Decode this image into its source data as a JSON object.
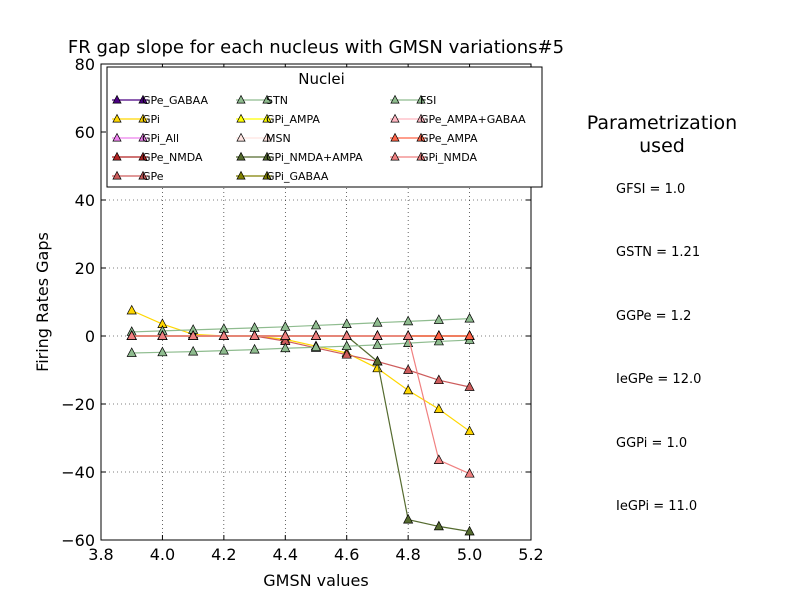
{
  "chart_data": {
    "type": "line",
    "title": "FR gap slope for each nucleus with GMSN variations#5",
    "xlabel": "GMSN values",
    "ylabel": "Firing Rates Gaps",
    "xlim": [
      3.8,
      5.2
    ],
    "ylim": [
      -60,
      80
    ],
    "xticks": [
      3.8,
      4.0,
      4.2,
      4.4,
      4.6,
      4.8,
      5.0,
      5.2
    ],
    "yticks": [
      -60,
      -40,
      -20,
      0,
      20,
      40,
      60,
      80
    ],
    "xtick_labels": [
      "3.8",
      "4.0",
      "4.2",
      "4.4",
      "4.6",
      "4.8",
      "5.0",
      "5.2"
    ],
    "ytick_labels": [
      "−60",
      "−40",
      "−20",
      "0",
      "20",
      "40",
      "60",
      "80"
    ],
    "grid": true,
    "legend_title": "Nuclei",
    "legend_placement": "top",
    "x": [
      3.9,
      4.0,
      4.1,
      4.2,
      4.3,
      4.4,
      4.5,
      4.6,
      4.7,
      4.8,
      4.9,
      5.0
    ],
    "series": [
      {
        "name": "GPe_GABAA",
        "color": "#4b0082",
        "values": [
          0,
          0,
          0,
          0,
          0,
          0,
          0,
          0,
          0,
          0,
          0,
          0
        ]
      },
      {
        "name": "GPi",
        "color": "#ffd700",
        "values": [
          7.5,
          3.5,
          0.5,
          0,
          0,
          -1,
          -3,
          -5,
          -9.5,
          -16,
          -21.5,
          -28
        ]
      },
      {
        "name": "GPi_All",
        "color": "#ee82ee",
        "values": [
          0,
          0,
          0,
          0,
          0,
          0,
          0,
          0,
          0,
          0,
          0,
          0
        ]
      },
      {
        "name": "GPe_NMDA",
        "color": "#b22222",
        "values": [
          0,
          0,
          0,
          0,
          0,
          0,
          0,
          0,
          0,
          0,
          0,
          0
        ]
      },
      {
        "name": "GPe",
        "color": "#cd5c5c",
        "values": [
          0,
          0,
          0,
          0,
          0,
          -1.5,
          -3.5,
          -5.5,
          -7.5,
          -10,
          -13,
          -15
        ]
      },
      {
        "name": "STN",
        "color": "#8fbc8f",
        "values": [
          1.2,
          1.5,
          1.8,
          2.1,
          2.4,
          2.7,
          3.1,
          3.5,
          3.9,
          4.3,
          4.7,
          5.1
        ]
      },
      {
        "name": "GPi_AMPA",
        "color": "#ffff00",
        "values": [
          0,
          0,
          0,
          0,
          0,
          0,
          0,
          0,
          0,
          0,
          0,
          0
        ]
      },
      {
        "name": "MSN",
        "color": "#ffe4e1",
        "values": [
          0,
          0,
          0,
          0,
          0,
          0,
          0,
          0,
          0,
          0,
          0,
          0
        ]
      },
      {
        "name": "GPi_NMDA+AMPA",
        "color": "#556b2f",
        "values": [
          0,
          0,
          0,
          0,
          0,
          0,
          0,
          0,
          -7.5,
          -54,
          -56,
          -57.5
        ]
      },
      {
        "name": "GPi_GABAA",
        "color": "#808000",
        "values": [
          0,
          0,
          0,
          0,
          0,
          0,
          0,
          0,
          0,
          0,
          0,
          0
        ]
      },
      {
        "name": "FSI",
        "color": "#8fbc8f",
        "values": [
          -5,
          -4.8,
          -4.6,
          -4.3,
          -4,
          -3.6,
          -3.3,
          -3,
          -2.6,
          -2.1,
          -1.6,
          -1.2
        ]
      },
      {
        "name": "GPe_AMPA+GABAA",
        "color": "#ffb6c1",
        "values": [
          0,
          0,
          0,
          0,
          0,
          0,
          0,
          0,
          0,
          0,
          0,
          0
        ]
      },
      {
        "name": "GPe_AMPA",
        "color": "#ff6347",
        "values": [
          0,
          0,
          0,
          0,
          0,
          0,
          0,
          0,
          0,
          0,
          0,
          0
        ]
      },
      {
        "name": "GPi_NMDA",
        "color": "#f08080",
        "values": [
          0,
          0,
          0,
          0,
          0,
          0,
          0,
          0,
          0,
          0,
          -36.5,
          -40.5
        ]
      }
    ]
  },
  "side_panel": {
    "title_line1": "Parametrization",
    "title_line2": "used",
    "params": [
      "GFSI = 1.0",
      "GSTN = 1.21",
      "GGPe = 1.2",
      "IeGPe = 12.0",
      "GGPi = 1.0",
      "IeGPi = 11.0"
    ]
  }
}
